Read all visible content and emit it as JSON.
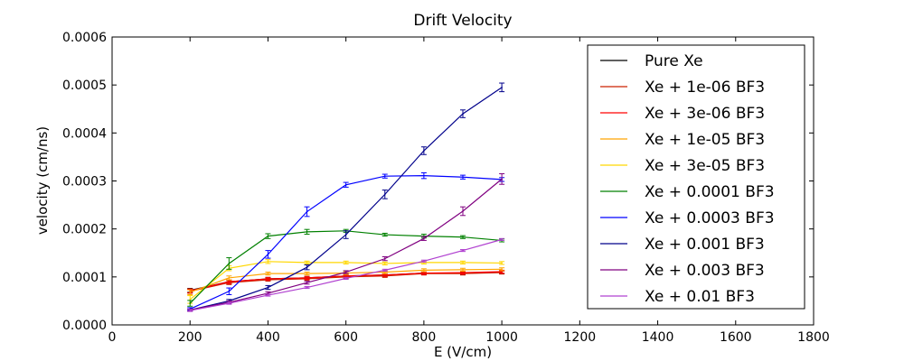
{
  "chart_data": {
    "type": "line",
    "title": "Drift Velocity",
    "xlabel": "E (V/cm)",
    "ylabel": "velocity (cm/ns)",
    "xlim": [
      0,
      1800
    ],
    "ylim": [
      0,
      0.0006
    ],
    "xticks": [
      0,
      200,
      400,
      600,
      800,
      1000,
      1200,
      1400,
      1600,
      1800
    ],
    "yticks": [
      0.0,
      0.0001,
      0.0002,
      0.0003,
      0.0004,
      0.0005,
      0.0006
    ],
    "ytick_labels": [
      "0.0000",
      "0.0001",
      "0.0002",
      "0.0003",
      "0.0004",
      "0.0005",
      "0.0006"
    ],
    "legend_position": "right",
    "grid": false,
    "error_bars": true,
    "x": [
      200,
      300,
      400,
      500,
      600,
      700,
      800,
      900,
      1000
    ],
    "series": [
      {
        "name": "Pure Xe",
        "color": "#000000",
        "values": [
          7.2e-05,
          9e-05,
          9.6e-05,
          9.8e-05,
          0.000102,
          0.000104,
          0.000108,
          0.000108,
          0.00011
        ],
        "errors": [
          4e-06,
          4e-06,
          3e-06,
          3e-06,
          3e-06,
          3e-06,
          3e-06,
          3e-06,
          3e-06
        ]
      },
      {
        "name": "Xe + 1e-06 BF3",
        "color": "#cc2200",
        "values": [
          7e-05,
          8.8e-05,
          9.4e-05,
          9.6e-05,
          0.0001,
          0.000102,
          0.000107,
          0.000107,
          0.000109
        ],
        "errors": [
          4e-06,
          4e-06,
          3e-06,
          3e-06,
          3e-06,
          3e-06,
          3e-06,
          3e-06,
          3e-06
        ]
      },
      {
        "name": "Xe + 3e-06 BF3",
        "color": "#ff0000",
        "values": [
          7.1e-05,
          9e-05,
          9.6e-05,
          9.8e-05,
          0.000102,
          0.000104,
          0.000108,
          0.000109,
          0.000111
        ],
        "errors": [
          4e-06,
          4e-06,
          3e-06,
          3e-06,
          3e-06,
          3e-06,
          3e-06,
          3e-06,
          3e-06
        ]
      },
      {
        "name": "Xe + 1e-05 BF3",
        "color": "#ffa500",
        "values": [
          6.8e-05,
          9.8e-05,
          0.000107,
          0.000107,
          0.000108,
          0.00011,
          0.000114,
          0.000115,
          0.000116
        ],
        "errors": [
          5e-06,
          4e-06,
          3e-06,
          3e-06,
          3e-06,
          3e-06,
          3e-06,
          3e-06,
          3e-06
        ]
      },
      {
        "name": "Xe + 3e-05 BF3",
        "color": "#ffd700",
        "values": [
          5.3e-05,
          0.000118,
          0.000132,
          0.00013,
          0.00013,
          0.000128,
          0.00013,
          0.00013,
          0.000129
        ],
        "errors": [
          8e-06,
          5e-06,
          4e-06,
          3e-06,
          3e-06,
          3e-06,
          3e-06,
          3e-06,
          3e-06
        ]
      },
      {
        "name": "Xe + 0.0001 BF3",
        "color": "#008000",
        "values": [
          4.5e-05,
          0.000128,
          0.000185,
          0.000194,
          0.000196,
          0.000188,
          0.000185,
          0.000183,
          0.000176
        ],
        "errors": [
          6e-06,
          1.2e-05,
          5e-06,
          5e-06,
          3e-06,
          3e-06,
          4e-06,
          3e-06,
          3e-06
        ]
      },
      {
        "name": "Xe + 0.0003 BF3",
        "color": "#0000ff",
        "values": [
          3.3e-05,
          7e-05,
          0.000147,
          0.000236,
          0.000292,
          0.00031,
          0.000311,
          0.000308,
          0.000303
        ],
        "errors": [
          3e-06,
          7e-06,
          8e-06,
          1e-05,
          5e-06,
          4e-06,
          6e-06,
          4e-06,
          4e-06
        ]
      },
      {
        "name": "Xe + 0.001 BF3",
        "color": "#00008b",
        "values": [
          3.1e-05,
          5e-05,
          7.8e-05,
          0.00012,
          0.000188,
          0.000272,
          0.000363,
          0.00044,
          0.000495
        ],
        "errors": [
          2e-06,
          3e-06,
          4e-06,
          5e-06,
          8e-06,
          9e-06,
          8e-06,
          8e-06,
          9e-06
        ]
      },
      {
        "name": "Xe + 0.003 BF3",
        "color": "#800080",
        "values": [
          3.1e-05,
          4.7e-05,
          6.6e-05,
          8.8e-05,
          0.00011,
          0.000138,
          0.00018,
          0.000237,
          0.000304
        ],
        "errors": [
          2e-06,
          3e-06,
          3e-06,
          3e-06,
          3e-06,
          4e-06,
          4e-06,
          9e-06,
          1.1e-05
        ]
      },
      {
        "name": "Xe + 0.01 BF3",
        "color": "#b040d0",
        "values": [
          3e-05,
          4.5e-05,
          6.2e-05,
          7.8e-05,
          9.7e-05,
          0.000114,
          0.000133,
          0.000155,
          0.000178
        ],
        "errors": [
          2e-06,
          2e-06,
          2e-06,
          2e-06,
          2e-06,
          2e-06,
          2e-06,
          2e-06,
          2e-06
        ]
      }
    ]
  }
}
